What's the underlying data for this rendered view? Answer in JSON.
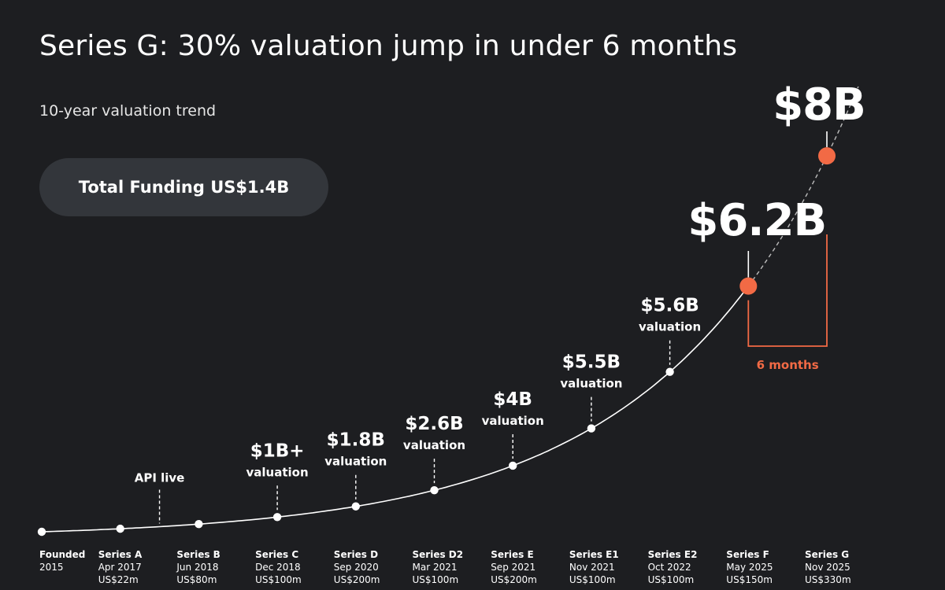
{
  "header": {
    "title": "Series G: 30% valuation jump in under 6 months",
    "subtitle": "10-year valuation trend"
  },
  "funding_pill": {
    "label": "Total Funding US$1.4B"
  },
  "colors": {
    "background": "#1d1e21",
    "pill": "#33363b",
    "curve": "#ffffff",
    "accent": "#f26a45"
  },
  "chart_data": {
    "type": "line",
    "title": "",
    "xlabel": "",
    "ylabel": "",
    "legend": "none",
    "grid": false,
    "rounds": [
      {
        "name": "Founded",
        "date": "2015",
        "amount": ""
      },
      {
        "name": "Series A",
        "date": "Apr 2017",
        "amount": "US$22m"
      },
      {
        "name": "Series B",
        "date": "Jun 2018",
        "amount": "US$80m"
      },
      {
        "name": "Series C",
        "date": "Dec 2018",
        "amount": "US$100m"
      },
      {
        "name": "Series D",
        "date": "Sep 2020",
        "amount": "US$200m"
      },
      {
        "name": "Series D2",
        "date": "Mar 2021",
        "amount": "US$100m"
      },
      {
        "name": "Series E",
        "date": "Sep 2021",
        "amount": "US$200m"
      },
      {
        "name": "Series E1",
        "date": "Nov 2021",
        "amount": "US$100m"
      },
      {
        "name": "Series E2",
        "date": "Oct 2022",
        "amount": "US$100m"
      },
      {
        "name": "Series F",
        "date": "May 2025",
        "amount": "US$150m"
      },
      {
        "name": "Series G",
        "date": "Nov 2025",
        "amount": "US$330m"
      }
    ],
    "valuation_labels": [
      {
        "round": 3,
        "amount": "$1B+",
        "word": "valuation",
        "valuation_b": 1
      },
      {
        "round": 4,
        "amount": "$1.8B",
        "word": "valuation",
        "valuation_b": 1.8
      },
      {
        "round": 5,
        "amount": "$2.6B",
        "word": "valuation",
        "valuation_b": 2.6
      },
      {
        "round": 6,
        "amount": "$4B",
        "word": "valuation",
        "valuation_b": 4
      },
      {
        "round": 7,
        "amount": "$5.5B",
        "word": "valuation",
        "valuation_b": 5.5
      },
      {
        "round": 8,
        "amount": "$5.6B",
        "word": "valuation",
        "valuation_b": 5.6
      },
      {
        "round": 9,
        "amount": "$6.2B",
        "word": "",
        "valuation_b": 6.2,
        "highlight": true
      },
      {
        "round": 10,
        "amount": "$8B",
        "word": "",
        "valuation_b": 8,
        "highlight": true
      }
    ],
    "events": [
      {
        "between": [
          1,
          2
        ],
        "label": "API live"
      }
    ],
    "bracket": {
      "from_round": 9,
      "to_round": 10,
      "label": "6 months"
    }
  }
}
